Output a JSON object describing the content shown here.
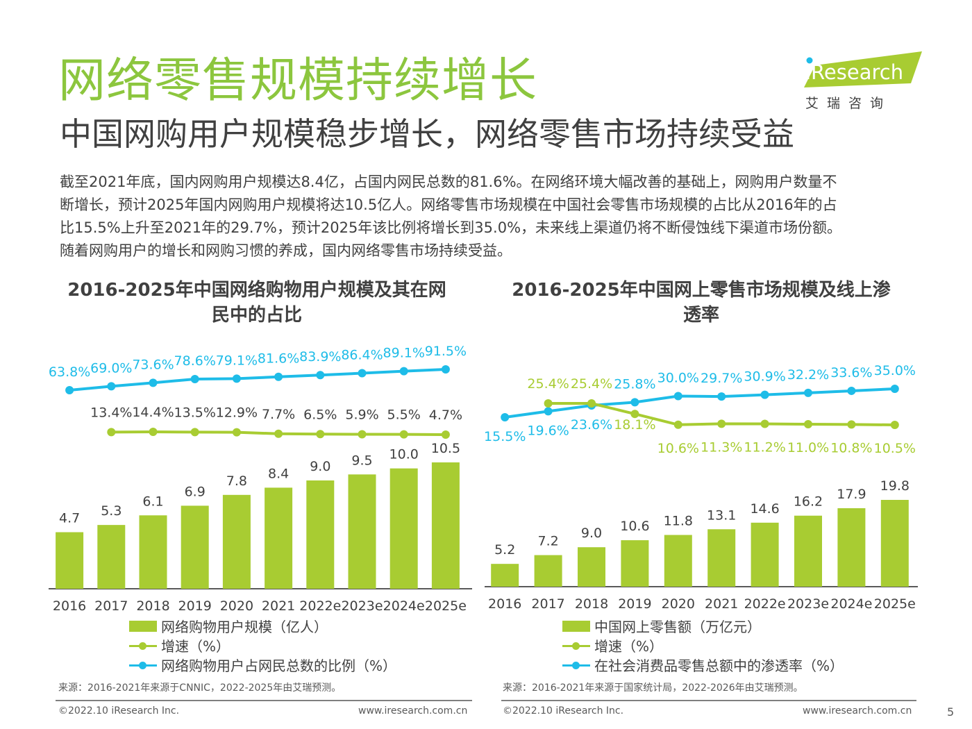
{
  "header": {
    "title": "网络零售规模持续增长",
    "subtitle": "中国网购用户规模稳步增长，网络零售市场持续受益",
    "logo_text": "iResearch",
    "logo_cn": "艾瑞咨询"
  },
  "body": {
    "lines": [
      "截至2021年底，国内网购用户规模达8.4亿，占国内网民总数的81.6%。在网络环境大幅改善的基础上，网购用户数量不",
      "断增长，预计2025年国内网购用户规模将达10.5亿人。网络零售市场规模在中国社会零售市场规模的占比从2016年的占",
      "比15.5%上升至2021年的29.7%，预计2025年该比例将增长到35.0%，未来线上渠道仍将不断侵蚀线下渠道市场份额。",
      "随着网购用户的增长和网购习惯的养成，国内网络零售市场持续受益。"
    ]
  },
  "chart_data": [
    {
      "type": "bar",
      "title": "2016-2025年中国网络购物用户规模及其在网民中的占比",
      "categories": [
        "2016",
        "2017",
        "2018",
        "2019",
        "2020",
        "2021",
        "2022e",
        "2023e",
        "2024e",
        "2025e"
      ],
      "series": [
        {
          "name": "网络购物用户规模（亿人）",
          "type": "bar",
          "color": "#A8CC32",
          "values": [
            4.7,
            5.3,
            6.1,
            6.9,
            7.8,
            8.4,
            9.0,
            9.5,
            10.0,
            10.5
          ],
          "labels": [
            "4.7",
            "5.3",
            "6.1",
            "6.9",
            "7.8",
            "8.4",
            "9.0",
            "9.5",
            "10.0",
            "10.5"
          ]
        },
        {
          "name": "增速（%）",
          "type": "line",
          "color": "#A8CC32",
          "values": [
            null,
            13.4,
            14.4,
            13.5,
            12.9,
            7.7,
            6.5,
            5.9,
            5.5,
            4.7
          ],
          "labels": [
            "",
            "13.4%",
            "14.4%",
            "13.5%",
            "12.9%",
            "7.7%",
            "6.5%",
            "5.9%",
            "5.5%",
            "4.7%"
          ]
        },
        {
          "name": "网络购物用户占网民总数的比例（%）",
          "type": "line",
          "color": "#1EBCE8",
          "values": [
            63.8,
            69.0,
            73.6,
            78.6,
            79.1,
            81.6,
            83.9,
            86.4,
            89.1,
            91.5
          ],
          "labels": [
            "63.8%",
            "69.0%",
            "73.6%",
            "78.6%",
            "79.1%",
            "81.6%",
            "83.9%",
            "86.4%",
            "89.1%",
            "91.5%"
          ]
        }
      ],
      "source": "来源：2016-2021年来源于CNNIC，2022-2025年由艾瑞预测。"
    },
    {
      "type": "bar",
      "title": "2016-2025年中国网上零售市场规模及线上渗透率",
      "categories": [
        "2016",
        "2017",
        "2018",
        "2019",
        "2020",
        "2021",
        "2022e",
        "2023e",
        "2024e",
        "2025e"
      ],
      "series": [
        {
          "name": "中国网上零售额（万亿元）",
          "type": "bar",
          "color": "#A8CC32",
          "values": [
            5.2,
            7.2,
            9.0,
            10.6,
            11.8,
            13.1,
            14.6,
            16.2,
            17.9,
            19.8
          ],
          "labels": [
            "5.2",
            "7.2",
            "9.0",
            "10.6",
            "11.8",
            "13.1",
            "14.6",
            "16.2",
            "17.9",
            "19.8"
          ]
        },
        {
          "name": "增速（%）",
          "type": "line",
          "color": "#A8CC32",
          "values": [
            null,
            25.4,
            25.4,
            18.1,
            10.6,
            11.3,
            11.2,
            11.0,
            10.8,
            10.5
          ],
          "labels": [
            "",
            "25.4%",
            "25.4%",
            "18.1%",
            "10.6%",
            "11.3%",
            "11.2%",
            "11.0%",
            "10.8%",
            "10.5%"
          ]
        },
        {
          "name": "在社会消费品零售总额中的渗透率（%）",
          "type": "line",
          "color": "#1EBCE8",
          "values": [
            15.5,
            19.6,
            23.6,
            25.8,
            30.0,
            29.7,
            30.9,
            32.2,
            33.6,
            35.0
          ],
          "labels": [
            "15.5%",
            "19.6%",
            "23.6%",
            "25.8%",
            "30.0%",
            "29.7%",
            "30.9%",
            "32.2%",
            "33.6%",
            "35.0%"
          ]
        }
      ],
      "source": "来源：2016-2021年来源于国家统计局，2022-2026年由艾瑞预测。"
    }
  ],
  "chart_titles": [
    {
      "line1": "2016-2025年中国网络购物用户规模及其在网",
      "line2": "民中的占比"
    },
    {
      "line1": "2016-2025年中国网上零售市场规模及线上渗",
      "line2": "透率"
    }
  ],
  "footer": {
    "copyright_left": "©2022.10 iResearch Inc.",
    "url_left": "www.iresearch.com.cn",
    "copyright_right": "©2022.10 iResearch Inc.",
    "url_right": "www.iresearch.com.cn",
    "page": "5"
  }
}
